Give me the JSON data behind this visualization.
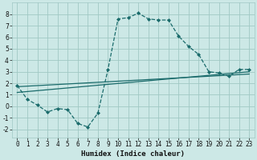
{
  "xlabel": "Humidex (Indice chaleur)",
  "bg_color": "#cce8e6",
  "grid_color": "#a0c8c4",
  "line_color": "#1a6b6b",
  "xlim": [
    -0.5,
    23.5
  ],
  "ylim": [
    -2.7,
    9.0
  ],
  "xticks": [
    0,
    1,
    2,
    3,
    4,
    5,
    6,
    7,
    8,
    9,
    10,
    11,
    12,
    13,
    14,
    15,
    16,
    17,
    18,
    19,
    20,
    21,
    22,
    23
  ],
  "yticks": [
    -2,
    -1,
    0,
    1,
    2,
    3,
    4,
    5,
    6,
    7,
    8
  ],
  "curve1_x": [
    0,
    1,
    2,
    3,
    4,
    5,
    6,
    7,
    8,
    9,
    10,
    11,
    12,
    13,
    14,
    15,
    16,
    17,
    18,
    19,
    20,
    21,
    22,
    23
  ],
  "curve1_y": [
    1.8,
    0.6,
    0.1,
    -0.5,
    -0.2,
    -0.3,
    -1.5,
    -1.8,
    -0.6,
    3.2,
    7.6,
    7.7,
    8.1,
    7.6,
    7.5,
    7.5,
    6.1,
    5.2,
    4.5,
    3.0,
    2.9,
    2.6,
    3.2,
    3.2
  ],
  "line2_x": [
    0,
    23
  ],
  "line2_y": [
    1.2,
    3.0
  ],
  "line3_x": [
    0,
    23
  ],
  "line3_y": [
    1.7,
    2.8
  ],
  "marker": "D",
  "marker_size": 2.0,
  "linewidth": 0.9,
  "tick_fontsize": 5.5,
  "xlabel_fontsize": 6.5
}
